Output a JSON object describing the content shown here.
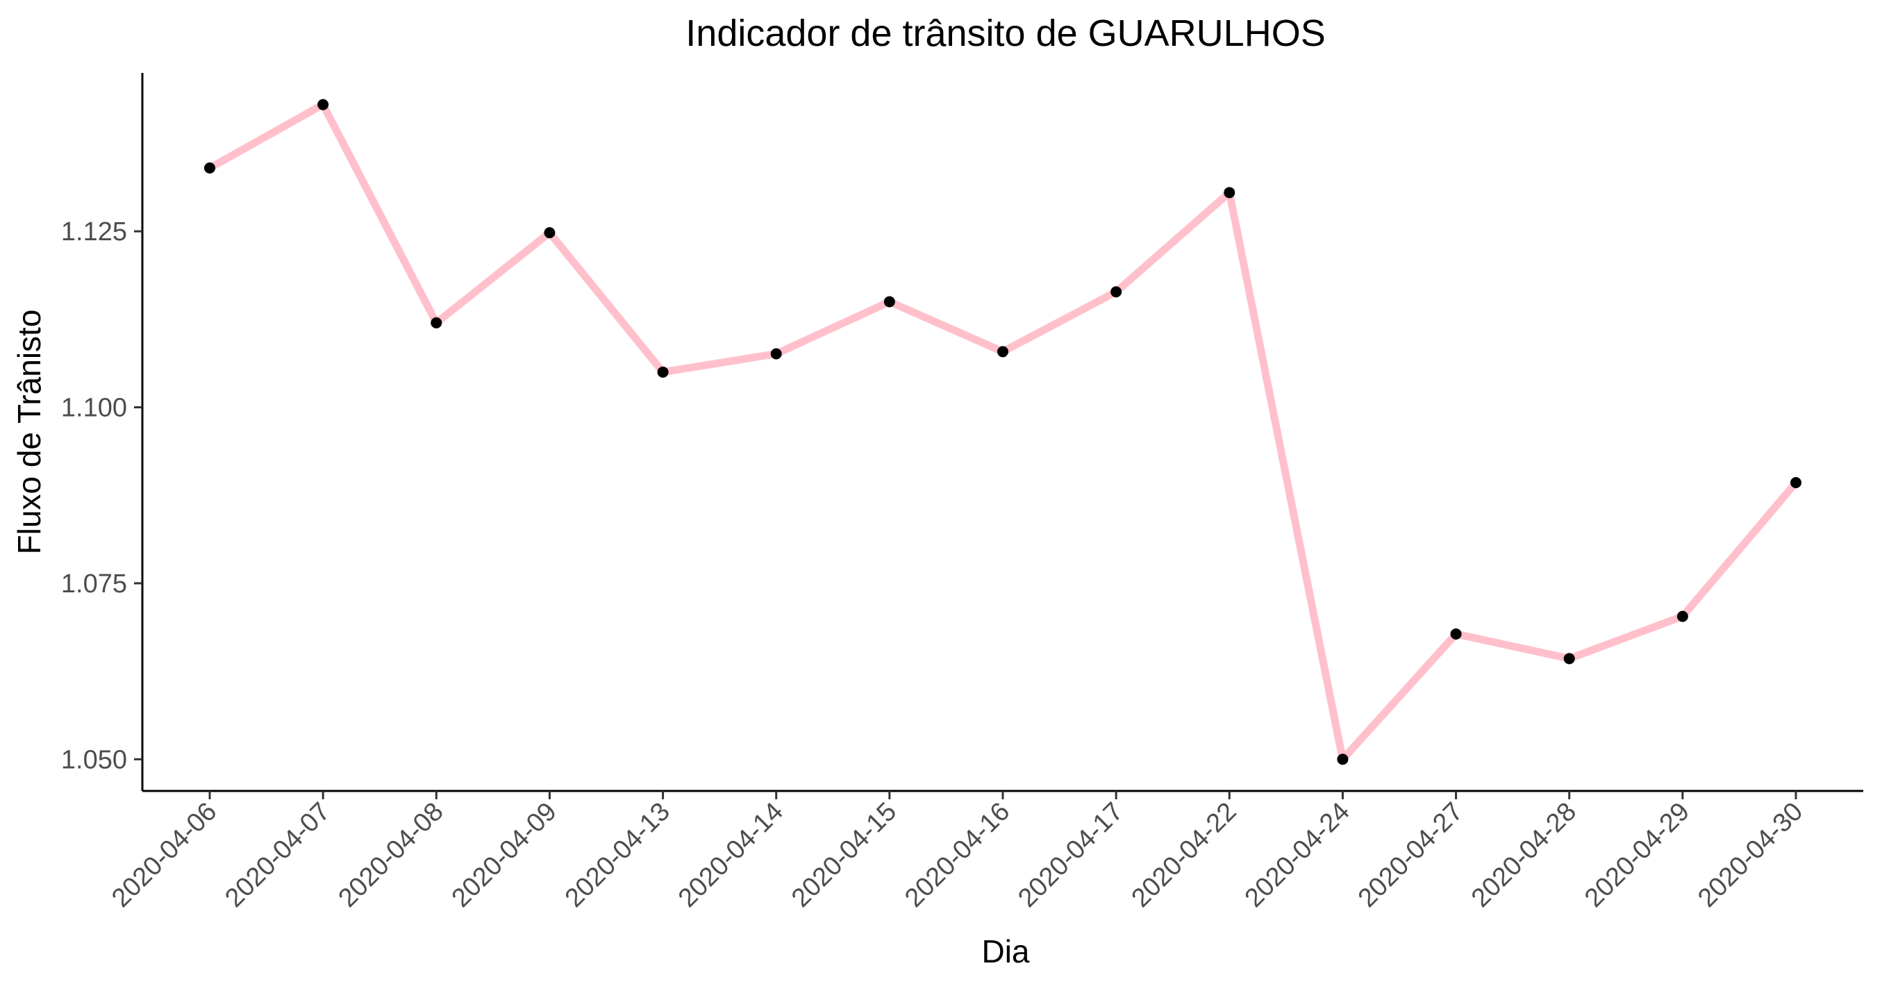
{
  "chart_data": {
    "type": "line",
    "title": "Indicador de trânsito de GUARULHOS",
    "xlabel": "Dia",
    "ylabel": "Fluxo de Trânisto",
    "categories": [
      "2020-04-06",
      "2020-04-07",
      "2020-04-08",
      "2020-04-09",
      "2020-04-13",
      "2020-04-14",
      "2020-04-15",
      "2020-04-16",
      "2020-04-17",
      "2020-04-22",
      "2020-04-24",
      "2020-04-27",
      "2020-04-28",
      "2020-04-29",
      "2020-04-30"
    ],
    "series": [
      {
        "values": [
          1.134,
          1.143,
          1.112,
          1.1248,
          1.105,
          1.1076,
          1.115,
          1.1079,
          1.1164,
          1.1305,
          1.05,
          1.0678,
          1.0643,
          1.0703,
          1.0893
        ],
        "line_color": "#ffc0cb",
        "point_color": "#000000"
      }
    ],
    "yticks": [
      "1.050",
      "1.075",
      "1.100",
      "1.125"
    ],
    "ylim": [
      1.0455,
      1.1475
    ],
    "grid": false,
    "legend": "none"
  }
}
